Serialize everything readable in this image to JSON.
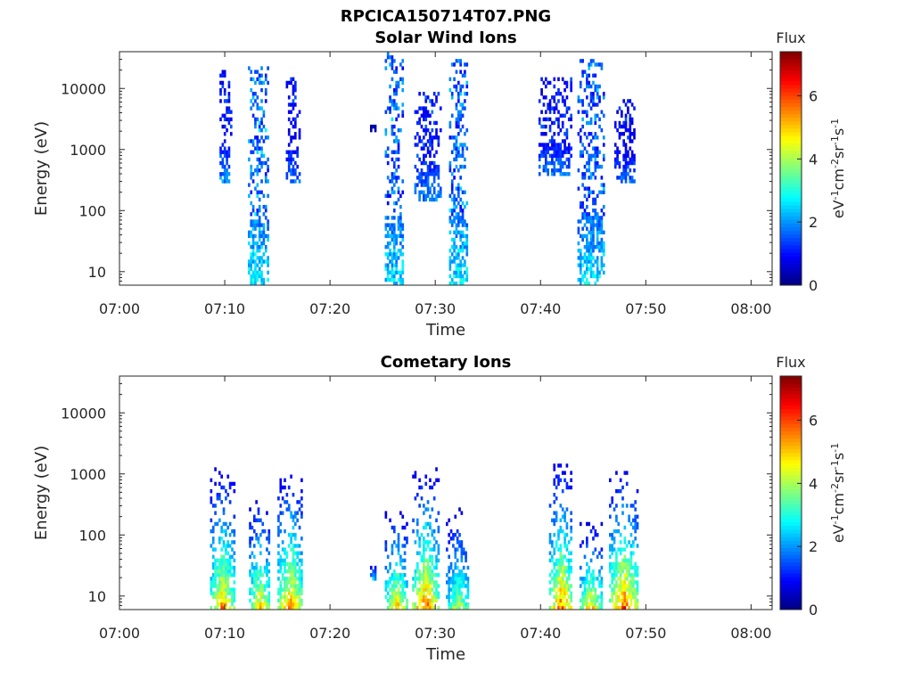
{
  "figure_title": "RPCICA150714T07.PNG",
  "colorbar": {
    "title": "Flux",
    "label_parts": [
      "eV",
      "-1",
      "cm",
      "-2",
      "sr",
      "-1",
      "s",
      "-1"
    ],
    "ticks": [
      0,
      2,
      4,
      6
    ],
    "range": [
      0,
      7.4
    ],
    "colormap": "jet"
  },
  "chart_data": [
    {
      "type": "heatmap",
      "title": "Solar Wind Ions",
      "xlabel": "Time",
      "ylabel": "Energy (eV)",
      "x_scale": "time",
      "y_scale": "log",
      "xlim": [
        "07:00",
        "08:02"
      ],
      "ylim": [
        6,
        40000
      ],
      "xticks": [
        "07:00",
        "07:10",
        "07:20",
        "07:30",
        "07:40",
        "07:50",
        "08:00"
      ],
      "yticks": [
        "10",
        "100",
        "1000",
        "10000"
      ],
      "clim": [
        0,
        7.4
      ],
      "bursts": [
        {
          "time_start": "07:09.5",
          "time_end": "07:10.5",
          "e_low": 300,
          "e_high": 20000,
          "flux_peak": 2.5
        },
        {
          "time_start": "07:12.2",
          "time_end": "07:14.0",
          "e_low": 6,
          "e_high": 22000,
          "flux_peak": 3.8
        },
        {
          "time_start": "07:15.8",
          "time_end": "07:17.0",
          "e_low": 300,
          "e_high": 15000,
          "flux_peak": 2.2
        },
        {
          "time_start": "07:23.8",
          "time_end": "07:24.3",
          "e_low": 2000,
          "e_high": 3000,
          "flux_peak": 0.5
        },
        {
          "time_start": "07:25.2",
          "time_end": "07:26.8",
          "e_low": 6,
          "e_high": 35000,
          "flux_peak": 3.5
        },
        {
          "time_start": "07:28.0",
          "time_end": "07:30.5",
          "e_low": 150,
          "e_high": 8000,
          "flux_peak": 2.5
        },
        {
          "time_start": "07:31.3",
          "time_end": "07:33.0",
          "e_low": 6,
          "e_high": 30000,
          "flux_peak": 3.7
        },
        {
          "time_start": "07:39.8",
          "time_end": "07:43.0",
          "e_low": 400,
          "e_high": 15000,
          "flux_peak": 2.3
        },
        {
          "time_start": "07:43.5",
          "time_end": "07:46.0",
          "e_low": 6,
          "e_high": 30000,
          "flux_peak": 3.5
        },
        {
          "time_start": "07:47.0",
          "time_end": "07:49.0",
          "e_low": 300,
          "e_high": 6000,
          "flux_peak": 2.2
        }
      ]
    },
    {
      "type": "heatmap",
      "title": "Cometary Ions",
      "xlabel": "Time",
      "ylabel": "Energy (eV)",
      "x_scale": "time",
      "y_scale": "log",
      "xlim": [
        "07:00",
        "08:02"
      ],
      "ylim": [
        6,
        40000
      ],
      "xticks": [
        "07:00",
        "07:10",
        "07:20",
        "07:30",
        "07:40",
        "07:50",
        "08:00"
      ],
      "yticks": [
        "10",
        "100",
        "1000",
        "10000"
      ],
      "clim": [
        0,
        7.4
      ],
      "bursts": [
        {
          "time_start": "07:08.6",
          "time_end": "07:10.8",
          "e_low": 6,
          "e_high": 1200,
          "flux_peak": 6.3
        },
        {
          "time_start": "07:12.3",
          "time_end": "07:14.2",
          "e_low": 6,
          "e_high": 400,
          "flux_peak": 6.0
        },
        {
          "time_start": "07:15.0",
          "time_end": "07:17.3",
          "e_low": 6,
          "e_high": 1100,
          "flux_peak": 6.5
        },
        {
          "time_start": "07:23.8",
          "time_end": "07:24.3",
          "e_low": 20,
          "e_high": 30,
          "flux_peak": 3.0
        },
        {
          "time_start": "07:25.2",
          "time_end": "07:27.3",
          "e_low": 6,
          "e_high": 250,
          "flux_peak": 6.0
        },
        {
          "time_start": "07:27.8",
          "time_end": "07:30.2",
          "e_low": 6,
          "e_high": 1200,
          "flux_peak": 6.8
        },
        {
          "time_start": "07:31.0",
          "time_end": "07:33.2",
          "e_low": 6,
          "e_high": 250,
          "flux_peak": 5.0
        },
        {
          "time_start": "07:40.8",
          "time_end": "07:43.0",
          "e_low": 6,
          "e_high": 1300,
          "flux_peak": 6.8
        },
        {
          "time_start": "07:43.7",
          "time_end": "07:45.8",
          "e_low": 6,
          "e_high": 150,
          "flux_peak": 6.0
        },
        {
          "time_start": "07:46.5",
          "time_end": "07:49.2",
          "e_low": 6,
          "e_high": 1000,
          "flux_peak": 7.0
        }
      ]
    }
  ]
}
